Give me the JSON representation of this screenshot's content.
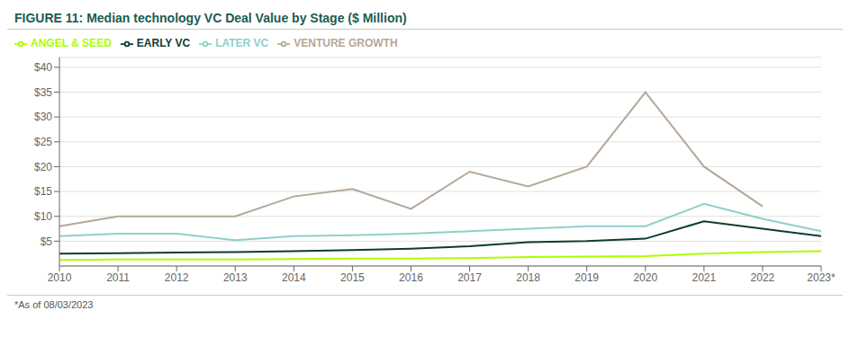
{
  "chart_data": {
    "type": "line",
    "title": "FIGURE 11:  Median technology VC Deal Value by Stage ($ Million)",
    "annotations": [
      "*As of 08/03/2023"
    ],
    "categories": [
      "2010",
      "2011",
      "2012",
      "2013",
      "2014",
      "2015",
      "2016",
      "2017",
      "2018",
      "2019",
      "2020",
      "2021",
      "2022",
      "2023*"
    ],
    "series": [
      {
        "name": "ANGEL & SEED",
        "color": "#aaff00",
        "values": [
          1.2,
          1.3,
          1.3,
          1.3,
          1.4,
          1.5,
          1.5,
          1.6,
          1.8,
          1.9,
          2.0,
          2.5,
          2.8,
          3.0
        ]
      },
      {
        "name": "EARLY VC",
        "color": "#0d3b35",
        "values": [
          2.5,
          2.6,
          2.7,
          2.8,
          3.0,
          3.2,
          3.5,
          4.0,
          4.8,
          5.0,
          5.5,
          9.0,
          7.5,
          6.0
        ]
      },
      {
        "name": "LATER VC",
        "color": "#8ecfcb",
        "values": [
          6.0,
          6.5,
          6.5,
          5.2,
          6.0,
          6.2,
          6.5,
          7.0,
          7.5,
          8.0,
          8.0,
          12.5,
          9.5,
          7.0
        ]
      },
      {
        "name": "VENTURE GROWTH",
        "color": "#b5a898",
        "values": [
          8.0,
          10.0,
          10.0,
          10.0,
          14.0,
          15.5,
          11.5,
          19.0,
          16.0,
          20.0,
          35.0,
          20.0,
          12.0,
          null
        ]
      }
    ],
    "ylim": [
      0,
      42
    ],
    "yticks": [
      {
        "value": 5,
        "label": "$5"
      },
      {
        "value": 10,
        "label": "$10"
      },
      {
        "value": 15,
        "label": "$15"
      },
      {
        "value": 20,
        "label": "$20"
      },
      {
        "value": 25,
        "label": "$25"
      },
      {
        "value": 30,
        "label": "$30"
      },
      {
        "value": 35,
        "label": "$35"
      },
      {
        "value": 40,
        "label": "$40"
      }
    ],
    "grid": true,
    "legend": "upper left"
  }
}
